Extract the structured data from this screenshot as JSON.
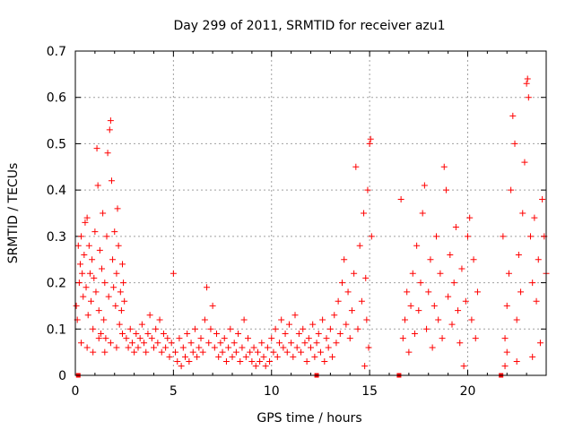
{
  "chart_data": {
    "type": "scatter",
    "title": "Day 299 of 2011, SRMTID for receiver azu1",
    "xlabel": "GPS time / hours",
    "ylabel": "SRMTID / TECUs",
    "xlim": [
      0,
      24
    ],
    "ylim": [
      0,
      0.7
    ],
    "xticks": [
      0,
      5,
      10,
      15,
      20
    ],
    "yticks": [
      0,
      0.1,
      0.2,
      0.3,
      0.4,
      0.5,
      0.6,
      0.7
    ],
    "grid": true,
    "marker": "+",
    "color": "#ff0000",
    "series": [
      {
        "name": "SRMTID",
        "points": [
          [
            0.05,
            0.15
          ],
          [
            0.1,
            0.12
          ],
          [
            0.15,
            0.28
          ],
          [
            0.2,
            0.2
          ],
          [
            0.25,
            0.24
          ],
          [
            0.3,
            0.3
          ],
          [
            0.35,
            0.22
          ],
          [
            0.4,
            0.17
          ],
          [
            0.45,
            0.26
          ],
          [
            0.5,
            0.33
          ],
          [
            0.55,
            0.19
          ],
          [
            0.6,
            0.34
          ],
          [
            0.65,
            0.13
          ],
          [
            0.7,
            0.28
          ],
          [
            0.75,
            0.22
          ],
          [
            0.8,
            0.16
          ],
          [
            0.85,
            0.25
          ],
          [
            0.9,
            0.1
          ],
          [
            0.95,
            0.21
          ],
          [
            1.0,
            0.31
          ],
          [
            1.05,
            0.18
          ],
          [
            1.1,
            0.49
          ],
          [
            1.15,
            0.41
          ],
          [
            1.2,
            0.14
          ],
          [
            1.25,
            0.27
          ],
          [
            1.3,
            0.09
          ],
          [
            1.35,
            0.23
          ],
          [
            1.4,
            0.35
          ],
          [
            1.45,
            0.12
          ],
          [
            1.5,
            0.2
          ],
          [
            1.55,
            0.08
          ],
          [
            1.6,
            0.3
          ],
          [
            1.65,
            0.48
          ],
          [
            1.7,
            0.17
          ],
          [
            1.75,
            0.53
          ],
          [
            1.8,
            0.55
          ],
          [
            1.85,
            0.42
          ],
          [
            1.9,
            0.25
          ],
          [
            1.95,
            0.19
          ],
          [
            2.0,
            0.31
          ],
          [
            2.05,
            0.15
          ],
          [
            2.1,
            0.22
          ],
          [
            2.15,
            0.36
          ],
          [
            2.2,
            0.28
          ],
          [
            2.25,
            0.11
          ],
          [
            2.3,
            0.18
          ],
          [
            2.35,
            0.14
          ],
          [
            2.4,
            0.24
          ],
          [
            2.45,
            0.2
          ],
          [
            2.5,
            0.16
          ],
          [
            0.3,
            0.07
          ],
          [
            0.6,
            0.06
          ],
          [
            0.9,
            0.05
          ],
          [
            1.2,
            0.08
          ],
          [
            1.5,
            0.05
          ],
          [
            1.8,
            0.07
          ],
          [
            2.1,
            0.06
          ],
          [
            2.4,
            0.09
          ],
          [
            2.6,
            0.08
          ],
          [
            2.7,
            0.06
          ],
          [
            2.8,
            0.1
          ],
          [
            2.9,
            0.07
          ],
          [
            3.0,
            0.05
          ],
          [
            3.1,
            0.09
          ],
          [
            3.2,
            0.06
          ],
          [
            3.3,
            0.08
          ],
          [
            3.4,
            0.11
          ],
          [
            3.5,
            0.07
          ],
          [
            3.6,
            0.05
          ],
          [
            3.7,
            0.09
          ],
          [
            3.8,
            0.13
          ],
          [
            3.9,
            0.08
          ],
          [
            4.0,
            0.06
          ],
          [
            4.1,
            0.1
          ],
          [
            4.2,
            0.07
          ],
          [
            4.3,
            0.12
          ],
          [
            4.4,
            0.05
          ],
          [
            4.5,
            0.09
          ],
          [
            4.6,
            0.06
          ],
          [
            4.7,
            0.08
          ],
          [
            4.8,
            0.04
          ],
          [
            4.9,
            0.07
          ],
          [
            5.0,
            0.22
          ],
          [
            5.1,
            0.05
          ],
          [
            5.2,
            0.03
          ],
          [
            5.3,
            0.08
          ],
          [
            5.4,
            0.02
          ],
          [
            5.5,
            0.06
          ],
          [
            5.6,
            0.04
          ],
          [
            5.7,
            0.09
          ],
          [
            5.8,
            0.03
          ],
          [
            5.9,
            0.07
          ],
          [
            6.0,
            0.05
          ],
          [
            6.1,
            0.1
          ],
          [
            6.2,
            0.04
          ],
          [
            6.3,
            0.06
          ],
          [
            6.4,
            0.08
          ],
          [
            6.5,
            0.05
          ],
          [
            6.6,
            0.12
          ],
          [
            6.7,
            0.19
          ],
          [
            6.8,
            0.07
          ],
          [
            6.9,
            0.1
          ],
          [
            7.0,
            0.15
          ],
          [
            7.1,
            0.06
          ],
          [
            7.2,
            0.09
          ],
          [
            7.3,
            0.04
          ],
          [
            7.4,
            0.07
          ],
          [
            7.5,
            0.05
          ],
          [
            7.6,
            0.08
          ],
          [
            7.7,
            0.03
          ],
          [
            7.8,
            0.06
          ],
          [
            7.9,
            0.1
          ],
          [
            8.0,
            0.04
          ],
          [
            8.1,
            0.07
          ],
          [
            8.2,
            0.05
          ],
          [
            8.3,
            0.09
          ],
          [
            8.4,
            0.03
          ],
          [
            8.5,
            0.06
          ],
          [
            8.6,
            0.12
          ],
          [
            8.7,
            0.04
          ],
          [
            8.8,
            0.08
          ],
          [
            8.9,
            0.05
          ],
          [
            9.0,
            0.03
          ],
          [
            9.1,
            0.06
          ],
          [
            9.2,
            0.02
          ],
          [
            9.3,
            0.05
          ],
          [
            9.4,
            0.03
          ],
          [
            9.5,
            0.07
          ],
          [
            9.6,
            0.04
          ],
          [
            9.7,
            0.02
          ],
          [
            9.8,
            0.06
          ],
          [
            9.9,
            0.03
          ],
          [
            10.0,
            0.08
          ],
          [
            10.1,
            0.05
          ],
          [
            10.2,
            0.1
          ],
          [
            10.3,
            0.04
          ],
          [
            10.4,
            0.07
          ],
          [
            10.5,
            0.12
          ],
          [
            10.6,
            0.06
          ],
          [
            10.7,
            0.09
          ],
          [
            10.8,
            0.05
          ],
          [
            10.9,
            0.11
          ],
          [
            11.0,
            0.07
          ],
          [
            11.1,
            0.04
          ],
          [
            11.2,
            0.13
          ],
          [
            11.3,
            0.06
          ],
          [
            11.4,
            0.09
          ],
          [
            11.5,
            0.05
          ],
          [
            11.6,
            0.1
          ],
          [
            11.7,
            0.07
          ],
          [
            11.8,
            0.03
          ],
          [
            11.9,
            0.08
          ],
          [
            12.0,
            0.06
          ],
          [
            12.1,
            0.11
          ],
          [
            12.2,
            0.04
          ],
          [
            12.3,
            0.07
          ],
          [
            12.4,
            0.09
          ],
          [
            12.5,
            0.05
          ],
          [
            12.6,
            0.12
          ],
          [
            12.7,
            0.03
          ],
          [
            12.8,
            0.08
          ],
          [
            12.9,
            0.06
          ],
          [
            13.0,
            0.1
          ],
          [
            13.1,
            0.04
          ],
          [
            13.2,
            0.13
          ],
          [
            13.3,
            0.07
          ],
          [
            13.4,
            0.16
          ],
          [
            13.5,
            0.09
          ],
          [
            13.6,
            0.2
          ],
          [
            13.7,
            0.25
          ],
          [
            13.8,
            0.11
          ],
          [
            13.9,
            0.18
          ],
          [
            14.0,
            0.08
          ],
          [
            14.1,
            0.14
          ],
          [
            14.2,
            0.22
          ],
          [
            14.3,
            0.45
          ],
          [
            14.4,
            0.1
          ],
          [
            14.5,
            0.28
          ],
          [
            14.6,
            0.16
          ],
          [
            14.7,
            0.35
          ],
          [
            14.8,
            0.21
          ],
          [
            14.9,
            0.4
          ],
          [
            15.0,
            0.5
          ],
          [
            15.05,
            0.51
          ],
          [
            15.1,
            0.3
          ],
          [
            14.85,
            0.12
          ],
          [
            14.95,
            0.06
          ],
          [
            14.75,
            0.02
          ],
          [
            16.6,
            0.38
          ],
          [
            16.7,
            0.08
          ],
          [
            16.8,
            0.12
          ],
          [
            16.9,
            0.18
          ],
          [
            17.0,
            0.05
          ],
          [
            17.1,
            0.15
          ],
          [
            17.2,
            0.22
          ],
          [
            17.3,
            0.09
          ],
          [
            17.4,
            0.28
          ],
          [
            17.5,
            0.14
          ],
          [
            17.6,
            0.2
          ],
          [
            17.7,
            0.35
          ],
          [
            17.8,
            0.41
          ],
          [
            17.9,
            0.1
          ],
          [
            18.0,
            0.18
          ],
          [
            18.1,
            0.25
          ],
          [
            18.2,
            0.06
          ],
          [
            18.3,
            0.15
          ],
          [
            18.4,
            0.3
          ],
          [
            18.5,
            0.12
          ],
          [
            18.6,
            0.22
          ],
          [
            18.7,
            0.08
          ],
          [
            18.8,
            0.45
          ],
          [
            18.9,
            0.4
          ],
          [
            19.0,
            0.17
          ],
          [
            19.1,
            0.26
          ],
          [
            19.2,
            0.11
          ],
          [
            19.3,
            0.2
          ],
          [
            19.4,
            0.32
          ],
          [
            19.5,
            0.14
          ],
          [
            19.6,
            0.07
          ],
          [
            19.7,
            0.23
          ],
          [
            19.8,
            0.02
          ],
          [
            19.9,
            0.16
          ],
          [
            20.0,
            0.3
          ],
          [
            20.1,
            0.34
          ],
          [
            20.2,
            0.12
          ],
          [
            20.3,
            0.25
          ],
          [
            20.4,
            0.08
          ],
          [
            20.5,
            0.18
          ],
          [
            21.8,
            0.3
          ],
          [
            21.9,
            0.08
          ],
          [
            22.0,
            0.15
          ],
          [
            22.1,
            0.22
          ],
          [
            22.2,
            0.4
          ],
          [
            22.3,
            0.56
          ],
          [
            22.4,
            0.5
          ],
          [
            22.5,
            0.12
          ],
          [
            22.6,
            0.26
          ],
          [
            22.7,
            0.18
          ],
          [
            22.8,
            0.35
          ],
          [
            22.9,
            0.46
          ],
          [
            23.0,
            0.63
          ],
          [
            23.05,
            0.64
          ],
          [
            23.1,
            0.6
          ],
          [
            23.2,
            0.3
          ],
          [
            23.3,
            0.2
          ],
          [
            23.4,
            0.34
          ],
          [
            23.5,
            0.16
          ],
          [
            23.6,
            0.25
          ],
          [
            23.7,
            0.07
          ],
          [
            23.8,
            0.38
          ],
          [
            23.9,
            0.3
          ],
          [
            24.0,
            0.22
          ],
          [
            22.5,
            0.03
          ],
          [
            22.0,
            0.05
          ],
          [
            23.3,
            0.04
          ],
          [
            21.9,
            0.02
          ]
        ]
      },
      {
        "name": "gap markers",
        "marker": "square",
        "points": [
          [
            0.15,
            0.0
          ],
          [
            12.3,
            0.0
          ],
          [
            16.5,
            0.0
          ],
          [
            21.7,
            0.0
          ]
        ]
      }
    ]
  }
}
